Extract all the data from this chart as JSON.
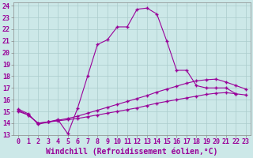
{
  "xlabel": "Windchill (Refroidissement éolien,°C)",
  "background_color": "#cce8e8",
  "grid_color": "#aacccc",
  "line_color": "#990099",
  "xlim": [
    -0.5,
    23.5
  ],
  "ylim": [
    13,
    24.3
  ],
  "xticks": [
    0,
    1,
    2,
    3,
    4,
    5,
    6,
    7,
    8,
    9,
    10,
    11,
    12,
    13,
    14,
    15,
    16,
    17,
    18,
    19,
    20,
    21,
    22,
    23
  ],
  "yticks": [
    13,
    14,
    15,
    16,
    17,
    18,
    19,
    20,
    21,
    22,
    23,
    24
  ],
  "line1_x": [
    0,
    1,
    2,
    3,
    4,
    5,
    6,
    7,
    8,
    9,
    10,
    11,
    12,
    13,
    14,
    15,
    16,
    17,
    18,
    19,
    20,
    21,
    22
  ],
  "line1_y": [
    15.2,
    14.8,
    13.9,
    14.1,
    14.3,
    13.1,
    15.3,
    18.0,
    20.7,
    21.1,
    22.2,
    22.2,
    23.7,
    23.8,
    23.3,
    21.0,
    18.5,
    18.5,
    17.2,
    17.0,
    17.0,
    17.0,
    16.5
  ],
  "line2_x": [
    0,
    1,
    2,
    3,
    4,
    5,
    6,
    7,
    8,
    9,
    10,
    11,
    12,
    13,
    14,
    15,
    16,
    17,
    18,
    19,
    20,
    21,
    22,
    23
  ],
  "line2_y": [
    15.1,
    14.7,
    14.0,
    14.1,
    14.25,
    14.4,
    14.6,
    14.85,
    15.1,
    15.35,
    15.6,
    15.85,
    16.1,
    16.35,
    16.65,
    16.9,
    17.15,
    17.4,
    17.6,
    17.7,
    17.75,
    17.5,
    17.2,
    16.9
  ],
  "line3_x": [
    0,
    1,
    2,
    3,
    4,
    5,
    6,
    7,
    8,
    9,
    10,
    11,
    12,
    13,
    14,
    15,
    16,
    17,
    18,
    19,
    20,
    21,
    22,
    23
  ],
  "line3_y": [
    15.0,
    14.7,
    14.0,
    14.1,
    14.2,
    14.3,
    14.4,
    14.55,
    14.7,
    14.85,
    15.0,
    15.15,
    15.3,
    15.5,
    15.7,
    15.85,
    16.0,
    16.15,
    16.3,
    16.45,
    16.55,
    16.6,
    16.5,
    16.4
  ],
  "fontsize": 6,
  "marker": "+"
}
